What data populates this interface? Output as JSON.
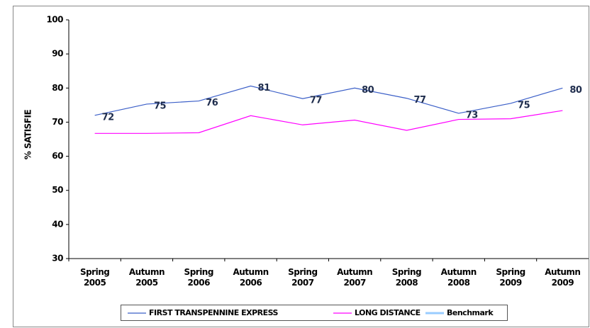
{
  "chart_data": {
    "type": "line",
    "y_label": "% SATISFIE",
    "categories": [
      "Spring 2005",
      "Autumn 2005",
      "Spring 2006",
      "Autumn 2006",
      "Spring 2007",
      "Autumn 2007",
      "Spring 2008",
      "Autumn 2008",
      "Spring 2009",
      "Autumn 2009"
    ],
    "series": [
      {
        "name": "FIRST TRANSPENNINE EXPRESS",
        "color": "#3b5fc8",
        "values": [
          72,
          75.3,
          76.2,
          80.6,
          76.9,
          80,
          77,
          72.6,
          75.5,
          80
        ],
        "value_labels": [
          "72",
          "75",
          "76",
          "81",
          "77",
          "80",
          "77",
          "73",
          "75",
          "80"
        ]
      },
      {
        "name": "LONG DISTANCE",
        "color": "#ff00ff",
        "values": [
          66.7,
          66.7,
          66.9,
          71.9,
          69.2,
          70.6,
          67.6,
          70.8,
          71,
          73.4
        ]
      },
      {
        "name": "Benchmark",
        "color": "#99ccff",
        "values": [
          null,
          null,
          null,
          null,
          null,
          null,
          null,
          null,
          null,
          null
        ]
      }
    ],
    "ylim": [
      30,
      100
    ],
    "yticks": [
      30,
      40,
      50,
      60,
      70,
      80,
      90,
      100
    ],
    "legend": "bottom"
  }
}
